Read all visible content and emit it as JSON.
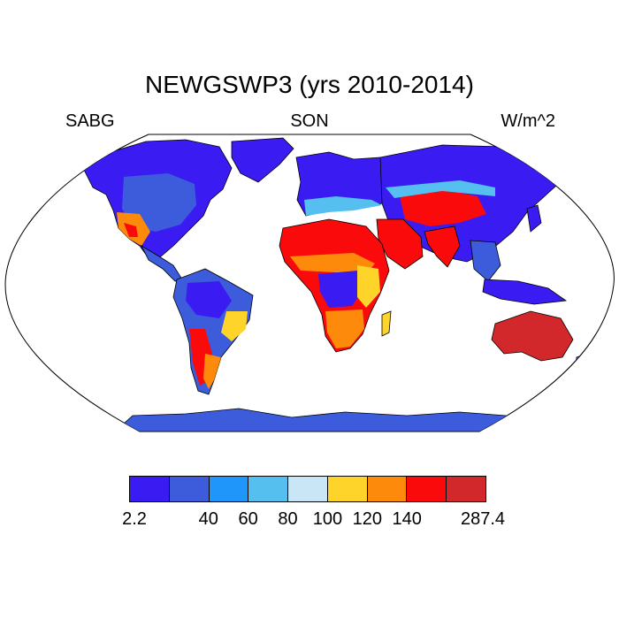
{
  "title": "NEWGSWP3 (yrs 2010-2014)",
  "left_label": "SABG",
  "center_label": "SON",
  "right_label": "W/m^2",
  "colorbar": {
    "colors": [
      "#3a1cf2",
      "#3d5cdc",
      "#1e96fa",
      "#55c0f0",
      "#c8e6f5",
      "#fed42a",
      "#fd8a0a",
      "#fa0a0a",
      "#d2282c"
    ],
    "labels": [
      "2.2",
      "40",
      "60",
      "80",
      "100",
      "120",
      "140",
      "287.4"
    ]
  },
  "map_colors": {
    "ocean": "#ffffff",
    "coast": "#000000",
    "antarctica": "#3d5cdc"
  }
}
